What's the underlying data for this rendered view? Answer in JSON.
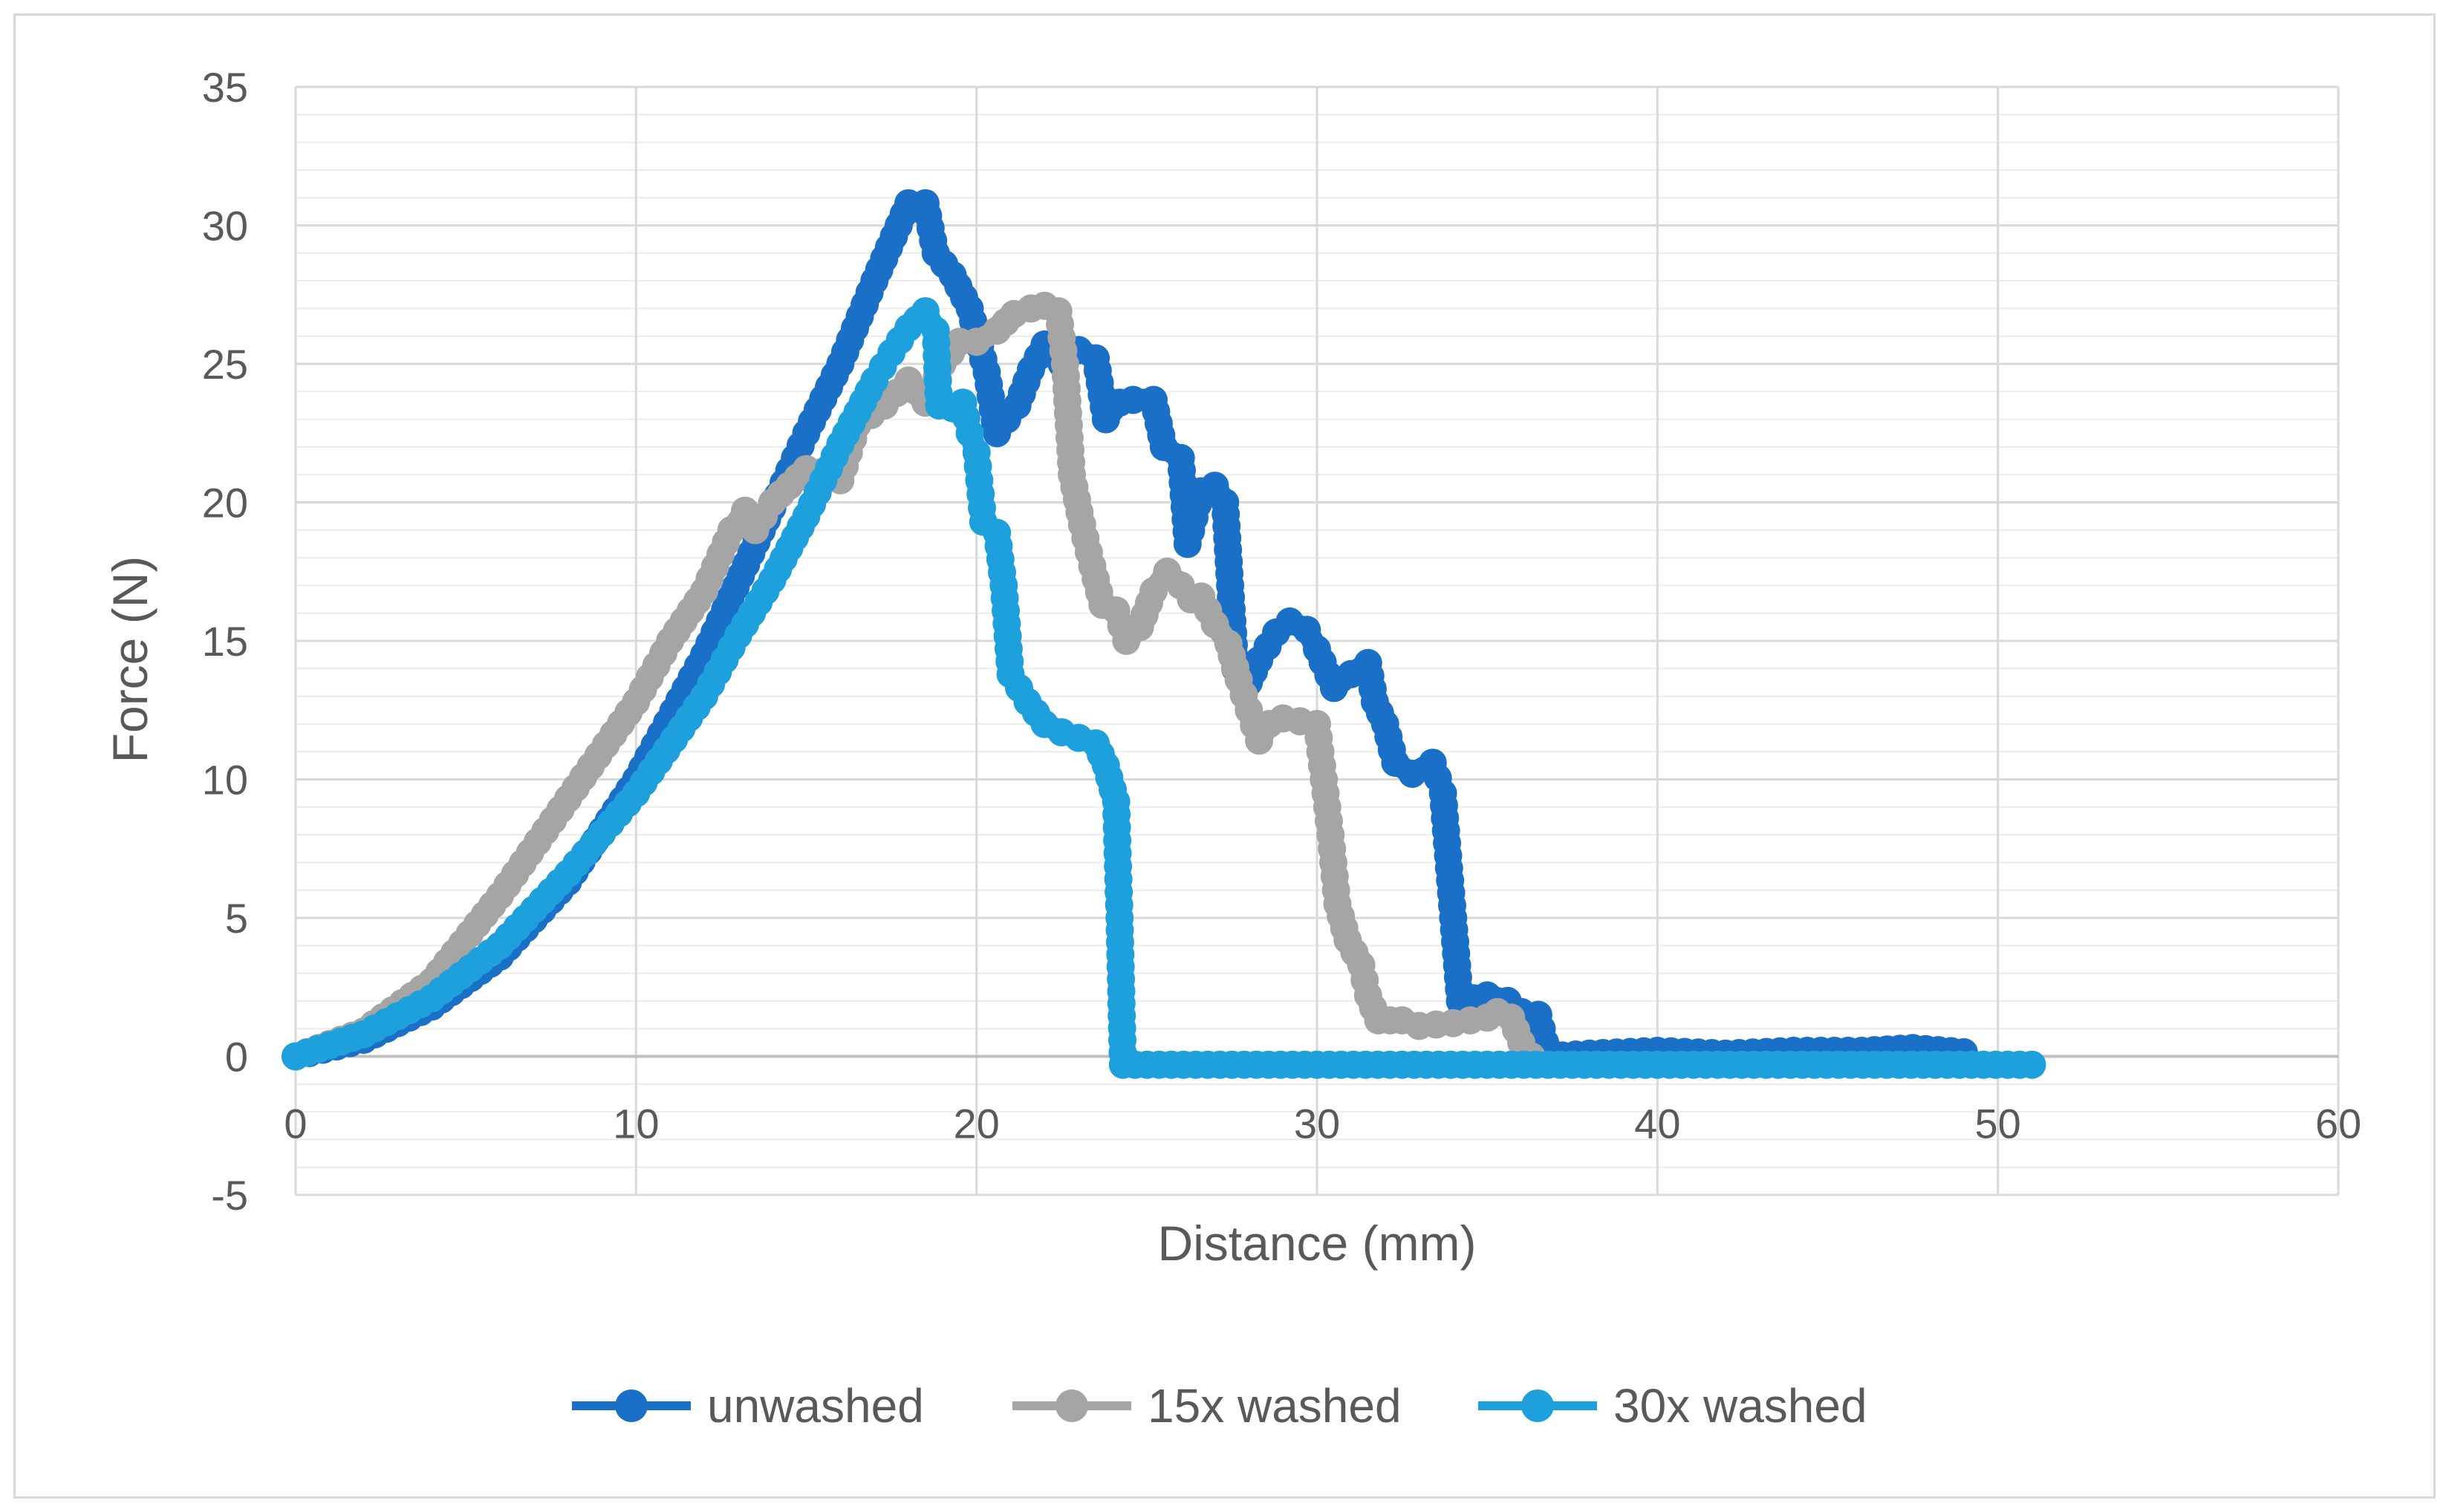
{
  "chart_data": {
    "type": "line",
    "title": "",
    "xlabel": "Distance (mm)",
    "ylabel": "Force (N)",
    "xlim": [
      0,
      60
    ],
    "ylim": [
      -5,
      35
    ],
    "x_ticks": [
      "0",
      "10",
      "20",
      "30",
      "40",
      "50",
      "60"
    ],
    "y_ticks": [
      "35",
      "30",
      "25",
      "20",
      "15",
      "10",
      "5",
      "0",
      "-5"
    ],
    "x_tick_values": [
      0,
      10,
      20,
      30,
      40,
      50,
      60
    ],
    "y_tick_values": [
      35,
      30,
      25,
      20,
      15,
      10,
      5,
      0,
      -5
    ],
    "y_minor_step": 1,
    "grid": true,
    "legend_position": "bottom",
    "series": [
      {
        "name": "unwashed",
        "color": "#1a6fc7",
        "points": [
          [
            0,
            0
          ],
          [
            2,
            0.6
          ],
          [
            4,
            1.8
          ],
          [
            6,
            3.6
          ],
          [
            8,
            6.3
          ],
          [
            10,
            10
          ],
          [
            12,
            14.5
          ],
          [
            14,
            19.8
          ],
          [
            15,
            22.5
          ],
          [
            16,
            25
          ],
          [
            17,
            28
          ],
          [
            18,
            30.8
          ],
          [
            18.5,
            30.8
          ],
          [
            18.8,
            29
          ],
          [
            19.3,
            28.2
          ],
          [
            19.8,
            27
          ],
          [
            20.3,
            24.7
          ],
          [
            20.6,
            22.5
          ],
          [
            21.2,
            23.5
          ],
          [
            21.6,
            24.8
          ],
          [
            22,
            25.7
          ],
          [
            22.5,
            25
          ],
          [
            23,
            25.5
          ],
          [
            23.5,
            25.2
          ],
          [
            23.8,
            23
          ],
          [
            24.2,
            23.6
          ],
          [
            24.6,
            23.7
          ],
          [
            25.2,
            23.7
          ],
          [
            25.5,
            22
          ],
          [
            26,
            21.6
          ],
          [
            26.2,
            18.5
          ],
          [
            26.6,
            20.4
          ],
          [
            27,
            20.6
          ],
          [
            27.3,
            20
          ],
          [
            27.6,
            14
          ],
          [
            28,
            13.5
          ],
          [
            28.3,
            14.3
          ],
          [
            28.8,
            15.3
          ],
          [
            29.2,
            15.7
          ],
          [
            29.7,
            15.4
          ],
          [
            30,
            14.7
          ],
          [
            30.5,
            13.3
          ],
          [
            31,
            13.8
          ],
          [
            31.5,
            14.2
          ],
          [
            31.7,
            12.8
          ],
          [
            32,
            12
          ],
          [
            32.3,
            10.6
          ],
          [
            32.8,
            10.2
          ],
          [
            33.4,
            10.6
          ],
          [
            33.7,
            9.5
          ],
          [
            34,
            5
          ],
          [
            34.2,
            2
          ],
          [
            35,
            2.2
          ],
          [
            35.6,
            2
          ],
          [
            36,
            1.6
          ],
          [
            36.5,
            1.5
          ],
          [
            36.8,
            0
          ],
          [
            38,
            0.1
          ],
          [
            40,
            0.2
          ],
          [
            42,
            0.1
          ],
          [
            44,
            0.2
          ],
          [
            46,
            0.2
          ],
          [
            47.5,
            0.3
          ],
          [
            49,
            0.15
          ]
        ]
      },
      {
        "name": "15x washed",
        "color": "#a5a5a5",
        "points": [
          [
            0,
            0
          ],
          [
            2,
            0.9
          ],
          [
            4,
            2.7
          ],
          [
            6,
            5.8
          ],
          [
            8,
            9.3
          ],
          [
            10,
            12.8
          ],
          [
            11,
            15
          ],
          [
            12,
            16.8
          ],
          [
            12.8,
            19
          ],
          [
            13.2,
            19.7
          ],
          [
            13.5,
            19
          ],
          [
            14,
            20
          ],
          [
            15,
            21.2
          ],
          [
            16,
            20.8
          ],
          [
            16.5,
            22.8
          ],
          [
            17.3,
            23.5
          ],
          [
            18,
            24.4
          ],
          [
            18.5,
            23.6
          ],
          [
            19,
            25
          ],
          [
            19.5,
            25.8
          ],
          [
            20,
            25.8
          ],
          [
            20.6,
            26.2
          ],
          [
            21.1,
            26.8
          ],
          [
            21.6,
            27
          ],
          [
            22,
            27.1
          ],
          [
            22.4,
            26.9
          ],
          [
            22.6,
            25
          ],
          [
            22.8,
            21
          ],
          [
            23.1,
            19.2
          ],
          [
            23.4,
            17.7
          ],
          [
            23.7,
            16.3
          ],
          [
            24.1,
            16.1
          ],
          [
            24.4,
            15
          ],
          [
            24.8,
            15.5
          ],
          [
            25.2,
            16.8
          ],
          [
            25.6,
            17.5
          ],
          [
            26,
            17
          ],
          [
            26.3,
            16.5
          ],
          [
            26.6,
            16.6
          ],
          [
            27,
            15.6
          ],
          [
            27.4,
            14.9
          ],
          [
            27.7,
            13.6
          ],
          [
            28,
            12.5
          ],
          [
            28.3,
            11.4
          ],
          [
            28.6,
            12
          ],
          [
            29,
            12.2
          ],
          [
            29.5,
            12.1
          ],
          [
            30,
            12
          ],
          [
            30.2,
            10
          ],
          [
            30.4,
            8
          ],
          [
            30.6,
            5.5
          ],
          [
            30.9,
            4.2
          ],
          [
            31.3,
            3.3
          ],
          [
            31.5,
            2.2
          ],
          [
            31.8,
            1.3
          ],
          [
            32.5,
            1.3
          ],
          [
            33,
            1.1
          ],
          [
            34,
            1.2
          ],
          [
            35,
            1.4
          ],
          [
            35.3,
            1.6
          ],
          [
            35.7,
            1.4
          ],
          [
            36,
            0.5
          ],
          [
            36.3,
            0
          ]
        ]
      },
      {
        "name": "30x washed",
        "color": "#1ea0dc",
        "points": [
          [
            0,
            0
          ],
          [
            2,
            0.8
          ],
          [
            4,
            2.1
          ],
          [
            6,
            4
          ],
          [
            8,
            6.6
          ],
          [
            10,
            9.5
          ],
          [
            12,
            13
          ],
          [
            13,
            15.2
          ],
          [
            14,
            17.2
          ],
          [
            15,
            19.5
          ],
          [
            16,
            22.1
          ],
          [
            17,
            24.4
          ],
          [
            17.5,
            25.4
          ],
          [
            18,
            26.3
          ],
          [
            18.5,
            26.9
          ],
          [
            18.8,
            26.2
          ],
          [
            18.9,
            23.5
          ],
          [
            19.3,
            23.4
          ],
          [
            19.6,
            23.6
          ],
          [
            19.8,
            22.5
          ],
          [
            20,
            21.8
          ],
          [
            20.2,
            19.3
          ],
          [
            20.6,
            18.9
          ],
          [
            20.8,
            17
          ],
          [
            21,
            13.8
          ],
          [
            21.5,
            12.8
          ],
          [
            22,
            12
          ],
          [
            22.5,
            11.7
          ],
          [
            23,
            11.5
          ],
          [
            23.5,
            11.3
          ],
          [
            23.8,
            10.5
          ],
          [
            24.1,
            9.2
          ],
          [
            24.2,
            5
          ],
          [
            24.3,
            -0.3
          ],
          [
            30,
            -0.3
          ],
          [
            40,
            -0.3
          ],
          [
            51,
            -0.3
          ]
        ]
      }
    ]
  }
}
